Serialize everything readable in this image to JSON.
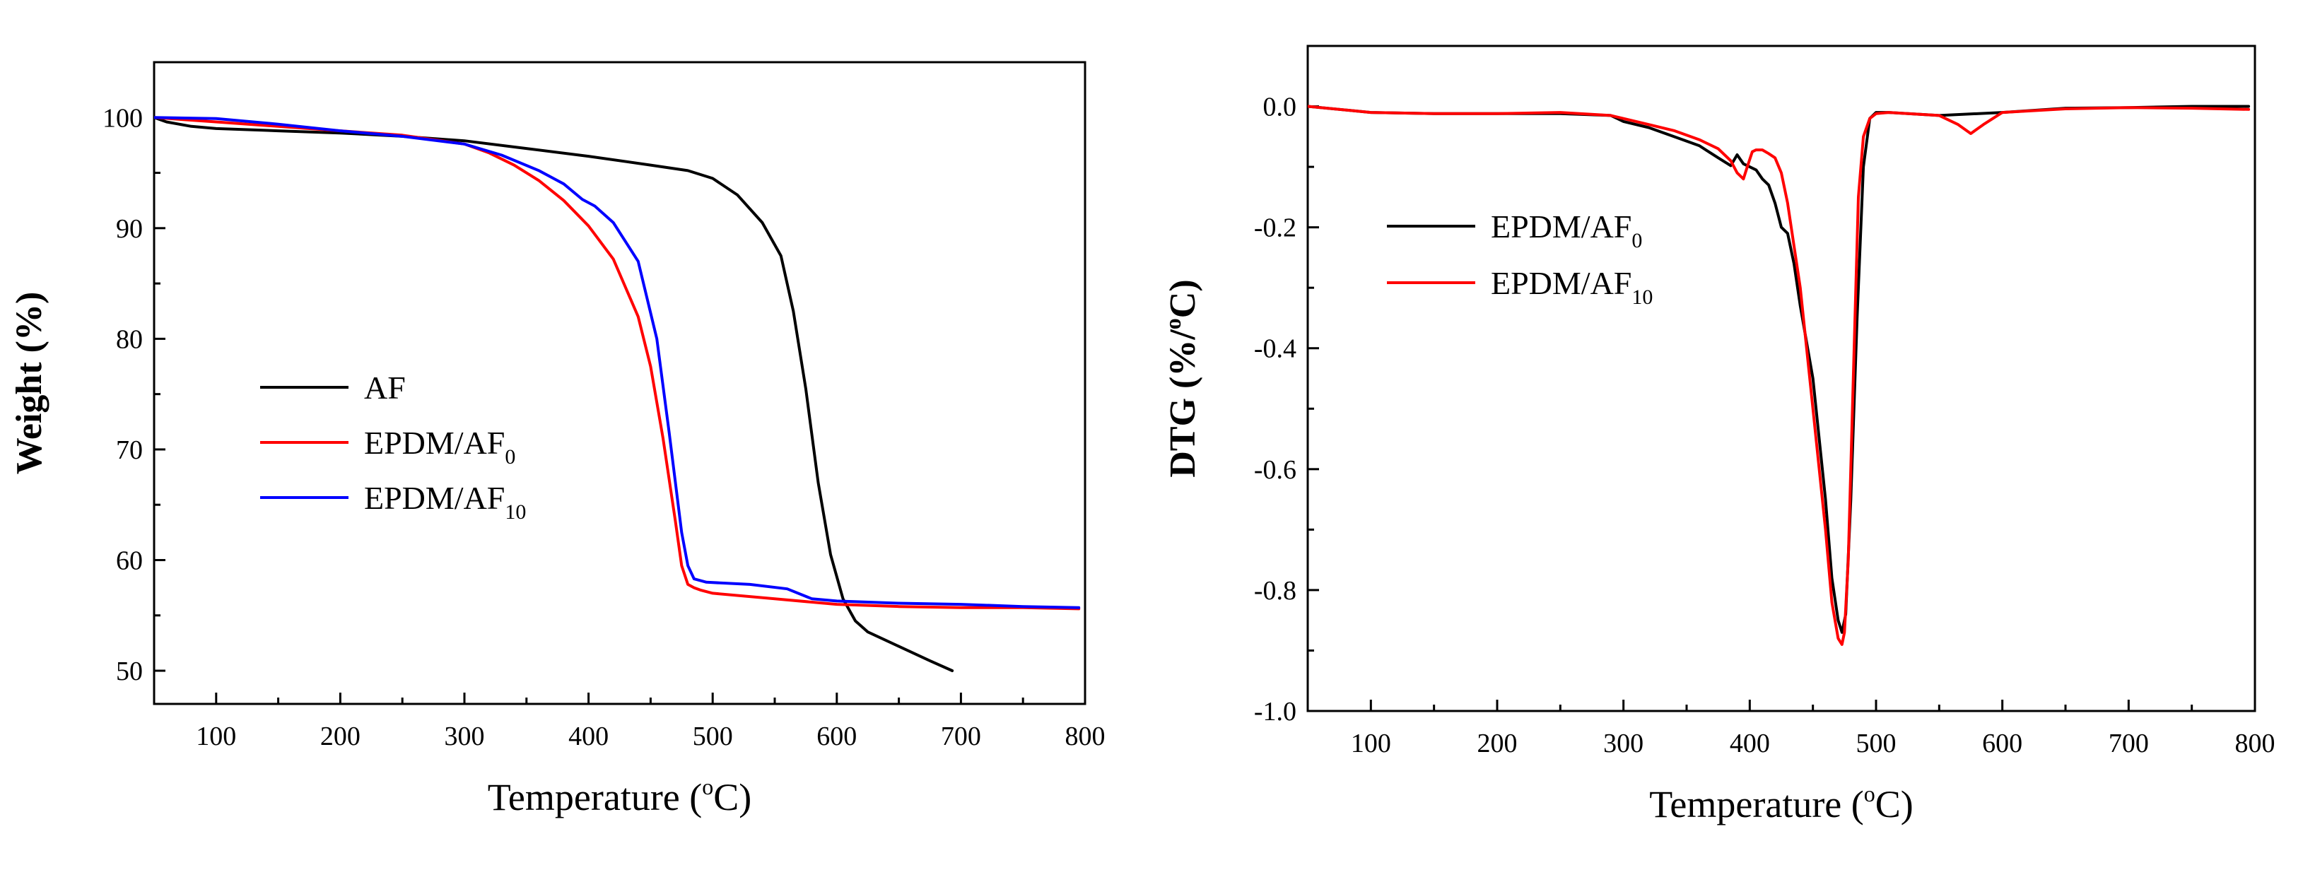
{
  "chart_data": [
    {
      "type": "line",
      "panel": "left",
      "title": "",
      "xlabel": {
        "base": "Temperature (",
        "sup": "o",
        "end": "C)"
      },
      "ylabel": "Weight (%)",
      "xlim": [
        50,
        800
      ],
      "ylim": [
        47,
        105
      ],
      "xticks": [
        100,
        200,
        300,
        400,
        500,
        600,
        700,
        800
      ],
      "xminor": [
        150,
        250,
        350,
        450,
        550,
        650,
        750
      ],
      "yticks": [
        50,
        60,
        70,
        80,
        90,
        100
      ],
      "yminor": [
        55,
        65,
        75,
        85,
        95
      ],
      "legend_position": "center-left",
      "series": [
        {
          "name": "AF",
          "label_main": "AF",
          "label_sub": "",
          "color": "#000000",
          "x": [
            50,
            60,
            80,
            100,
            150,
            200,
            250,
            300,
            350,
            400,
            450,
            480,
            500,
            520,
            540,
            555,
            565,
            575,
            585,
            595,
            605,
            615,
            625,
            650,
            675,
            693
          ],
          "y": [
            100,
            99.6,
            99.2,
            99.0,
            98.8,
            98.6,
            98.3,
            97.9,
            97.2,
            96.5,
            95.7,
            95.2,
            94.5,
            93.0,
            90.5,
            87.5,
            82.5,
            75.5,
            67.0,
            60.5,
            56.5,
            54.5,
            53.5,
            52.2,
            50.9,
            50.0
          ]
        },
        {
          "name": "EPDM/AF0",
          "label_main": "EPDM/AF",
          "label_sub": "0",
          "color": "#ff0000",
          "x": [
            50,
            100,
            150,
            200,
            250,
            300,
            320,
            340,
            360,
            380,
            400,
            420,
            440,
            450,
            460,
            470,
            475,
            480,
            485,
            490,
            500,
            550,
            600,
            650,
            700,
            750,
            795
          ],
          "y": [
            100,
            99.6,
            99.2,
            98.8,
            98.4,
            97.6,
            96.8,
            95.7,
            94.3,
            92.5,
            90.2,
            87.2,
            82.0,
            77.5,
            71.0,
            63.5,
            59.5,
            57.8,
            57.5,
            57.3,
            57.0,
            56.5,
            56.0,
            55.8,
            55.7,
            55.7,
            55.6
          ]
        },
        {
          "name": "EPDM/AF10",
          "label_main": "EPDM/AF",
          "label_sub": "10",
          "color": "#0000ff",
          "x": [
            50,
            100,
            150,
            200,
            250,
            300,
            330,
            360,
            380,
            395,
            405,
            420,
            440,
            455,
            465,
            475,
            480,
            485,
            495,
            530,
            560,
            580,
            600,
            650,
            700,
            750,
            795
          ],
          "y": [
            100,
            99.9,
            99.4,
            98.8,
            98.3,
            97.6,
            96.6,
            95.2,
            94.0,
            92.6,
            92.0,
            90.5,
            87.0,
            80.0,
            71.5,
            62.5,
            59.5,
            58.3,
            58.0,
            57.8,
            57.4,
            56.5,
            56.3,
            56.1,
            56.0,
            55.8,
            55.7
          ]
        }
      ]
    },
    {
      "type": "line",
      "panel": "right",
      "title": "",
      "xlabel": {
        "base": "Temperature (",
        "sup": "o",
        "end": "C)"
      },
      "ylabel": {
        "base": "DTG (%/",
        "sup": "o",
        "end": "C)"
      },
      "xlim": [
        50,
        800
      ],
      "ylim": [
        -1.0,
        0.1
      ],
      "xticks": [
        100,
        200,
        300,
        400,
        500,
        600,
        700,
        800
      ],
      "xtick_labels": [
        "100",
        "200",
        "300",
        "400",
        "500",
        "600",
        "700",
        "800"
      ],
      "xminor": [
        150,
        250,
        350,
        450,
        550,
        650,
        750
      ],
      "yticks": [
        0.0,
        -0.2,
        -0.4,
        -0.6,
        -0.8,
        -1.0
      ],
      "ytick_labels": [
        "0.0",
        "-0.2",
        "-0.4",
        "-0.6",
        "-0.8",
        "-1.0"
      ],
      "yminor": [
        -0.1,
        -0.3,
        -0.5,
        -0.7,
        -0.9
      ],
      "legend_position": "upper-left",
      "series": [
        {
          "name": "EPDM/AF0",
          "label_main": "EPDM/AF",
          "label_sub": "0",
          "color": "#000000",
          "x": [
            50,
            100,
            150,
            200,
            250,
            290,
            300,
            320,
            340,
            360,
            375,
            385,
            390,
            395,
            400,
            405,
            410,
            415,
            420,
            425,
            430,
            435,
            440,
            450,
            460,
            465,
            470,
            473,
            476,
            480,
            485,
            490,
            495,
            500,
            510,
            550,
            600,
            650,
            700,
            750,
            795
          ],
          "y": [
            0.0,
            -0.01,
            -0.012,
            -0.012,
            -0.012,
            -0.015,
            -0.025,
            -0.035,
            -0.05,
            -0.065,
            -0.085,
            -0.098,
            -0.08,
            -0.095,
            -0.1,
            -0.105,
            -0.12,
            -0.13,
            -0.16,
            -0.2,
            -0.21,
            -0.26,
            -0.33,
            -0.45,
            -0.65,
            -0.78,
            -0.85,
            -0.87,
            -0.84,
            -0.65,
            -0.35,
            -0.1,
            -0.02,
            -0.01,
            -0.01,
            -0.015,
            -0.01,
            -0.003,
            -0.002,
            0.0,
            0.0
          ]
        },
        {
          "name": "EPDM/AF10",
          "label_main": "EPDM/AF",
          "label_sub": "10",
          "color": "#ff0000",
          "x": [
            50,
            100,
            150,
            200,
            250,
            290,
            300,
            320,
            340,
            360,
            375,
            385,
            390,
            395,
            398,
            402,
            405,
            410,
            415,
            420,
            425,
            430,
            440,
            450,
            460,
            465,
            470,
            473,
            475,
            478,
            482,
            486,
            490,
            495,
            500,
            510,
            550,
            565,
            575,
            585,
            600,
            650,
            700,
            750,
            795
          ],
          "y": [
            0.0,
            -0.01,
            -0.012,
            -0.012,
            -0.01,
            -0.015,
            -0.02,
            -0.03,
            -0.04,
            -0.055,
            -0.07,
            -0.09,
            -0.11,
            -0.12,
            -0.1,
            -0.075,
            -0.072,
            -0.072,
            -0.078,
            -0.085,
            -0.11,
            -0.16,
            -0.3,
            -0.5,
            -0.7,
            -0.82,
            -0.88,
            -0.89,
            -0.87,
            -0.75,
            -0.45,
            -0.15,
            -0.05,
            -0.02,
            -0.012,
            -0.01,
            -0.015,
            -0.03,
            -0.045,
            -0.03,
            -0.01,
            -0.004,
            -0.002,
            -0.003,
            -0.005
          ]
        }
      ]
    }
  ]
}
